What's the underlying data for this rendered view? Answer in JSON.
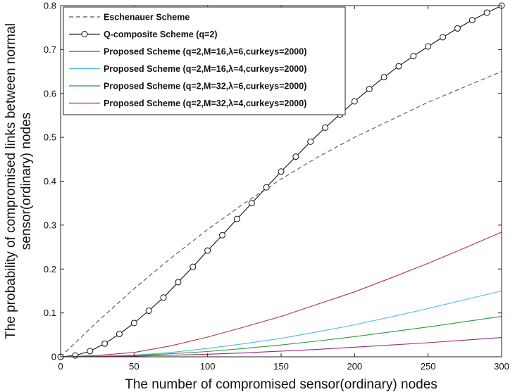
{
  "chart_data": {
    "type": "line",
    "title": "",
    "xlabel": "The number of compromised sensor(ordinary) nodes",
    "ylabel_lines": [
      "The probability of compromised links between normal",
      "sensor(ordinary) nodes"
    ],
    "xlim": [
      0,
      300
    ],
    "ylim": [
      0,
      0.8
    ],
    "xticks": [
      0,
      50,
      100,
      150,
      200,
      250,
      300
    ],
    "yticks": [
      0,
      0.1,
      0.2,
      0.3,
      0.4,
      0.5,
      0.6,
      0.7,
      0.8
    ],
    "xtick_labels": [
      "0",
      "50",
      "100",
      "150",
      "200",
      "250",
      "300"
    ],
    "ytick_labels": [
      "0",
      "0.1",
      "0.2",
      "0.3",
      "0.4",
      "0.5",
      "0.6",
      "0.7",
      "0.8"
    ],
    "grid": false,
    "legend_position": "top-left",
    "series": [
      {
        "name": "Eschenauer Scheme",
        "color": "#555555",
        "style": "dashed",
        "marker": "none",
        "x": [
          0,
          25,
          50,
          75,
          100,
          125,
          150,
          175,
          200,
          225,
          250,
          275,
          300
        ],
        "y": [
          0,
          0.08,
          0.155,
          0.225,
          0.29,
          0.35,
          0.405,
          0.455,
          0.5,
          0.54,
          0.58,
          0.615,
          0.65
        ]
      },
      {
        "name": "Q-composite Scheme (q=2)",
        "color": "#111111",
        "style": "solid",
        "marker": "circle",
        "x": [
          0,
          10,
          20,
          30,
          40,
          50,
          60,
          70,
          80,
          90,
          100,
          110,
          120,
          130,
          140,
          150,
          160,
          170,
          180,
          190,
          200,
          210,
          220,
          230,
          240,
          250,
          260,
          270,
          280,
          290,
          300
        ],
        "y": [
          0,
          0.003,
          0.013,
          0.03,
          0.052,
          0.077,
          0.105,
          0.135,
          0.17,
          0.205,
          0.242,
          0.277,
          0.314,
          0.35,
          0.386,
          0.422,
          0.456,
          0.49,
          0.522,
          0.552,
          0.582,
          0.61,
          0.637,
          0.662,
          0.685,
          0.707,
          0.728,
          0.748,
          0.767,
          0.784,
          0.8
        ]
      },
      {
        "name": "Proposed Scheme (q=2,M=16,λ=6,curkeys=2000)",
        "color": "#b0334a",
        "style": "solid",
        "marker": "none",
        "x": [
          0,
          25,
          50,
          75,
          100,
          125,
          150,
          175,
          200,
          225,
          250,
          275,
          300
        ],
        "y": [
          0,
          0.003,
          0.01,
          0.025,
          0.045,
          0.068,
          0.092,
          0.12,
          0.148,
          0.18,
          0.213,
          0.248,
          0.284
        ]
      },
      {
        "name": "Proposed Scheme (q=2,M=16,λ=4,curkeys=2000)",
        "color": "#4cc0d8",
        "style": "solid",
        "marker": "none",
        "x": [
          0,
          25,
          50,
          75,
          100,
          125,
          150,
          175,
          200,
          225,
          250,
          275,
          300
        ],
        "y": [
          0,
          0.001,
          0.004,
          0.01,
          0.019,
          0.03,
          0.042,
          0.057,
          0.073,
          0.091,
          0.11,
          0.13,
          0.15
        ]
      },
      {
        "name": "Proposed Scheme (q=2,M=32,λ=6,curkeys=2000)",
        "color": "#2e9a3a",
        "style": "solid",
        "marker": "none",
        "x": [
          0,
          25,
          50,
          75,
          100,
          125,
          150,
          175,
          200,
          225,
          250,
          275,
          300
        ],
        "y": [
          0,
          0.001,
          0.003,
          0.007,
          0.012,
          0.019,
          0.027,
          0.036,
          0.046,
          0.057,
          0.068,
          0.08,
          0.092
        ]
      },
      {
        "name": "Proposed Scheme (q=2,M=32,λ=4,curkeys=2000)",
        "color": "#9a2a86",
        "style": "solid",
        "marker": "none",
        "x": [
          0,
          25,
          50,
          75,
          100,
          125,
          150,
          175,
          200,
          225,
          250,
          275,
          300
        ],
        "y": [
          0,
          0.0005,
          0.0015,
          0.0035,
          0.006,
          0.009,
          0.013,
          0.017,
          0.022,
          0.027,
          0.032,
          0.038,
          0.044
        ]
      }
    ]
  }
}
